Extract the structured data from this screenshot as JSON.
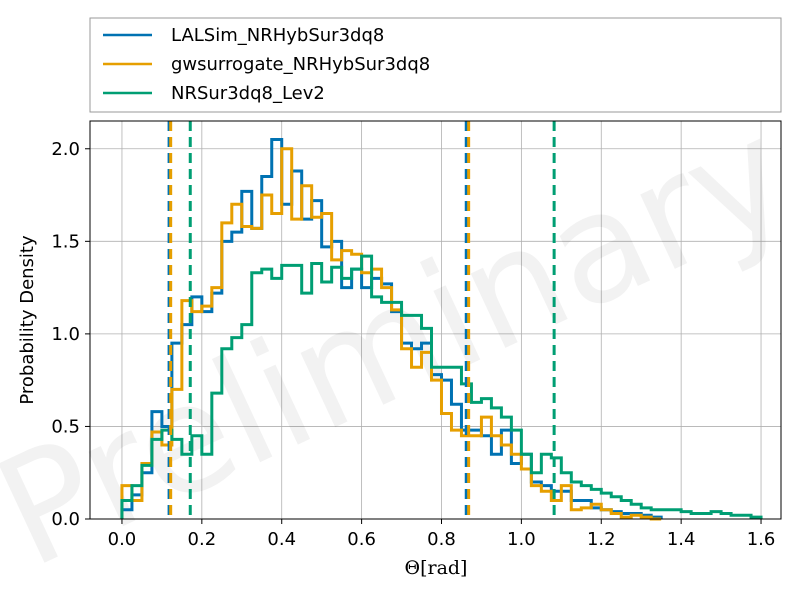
{
  "chart_data": {
    "type": "histogram-step",
    "xlabel": "Θ[rad]",
    "ylabel": "Probability Density",
    "xlim": [
      -0.08,
      1.65
    ],
    "ylim": [
      0.0,
      2.15
    ],
    "xticks": [
      0.0,
      0.2,
      0.4,
      0.6,
      0.8,
      1.0,
      1.2,
      1.4,
      1.6
    ],
    "xtick_labels": [
      "0.0",
      "0.2",
      "0.4",
      "0.6",
      "0.8",
      "1.0",
      "1.2",
      "1.4",
      "1.6"
    ],
    "yticks": [
      0.0,
      0.5,
      1.0,
      1.5,
      2.0
    ],
    "ytick_labels": [
      "0.0",
      "0.5",
      "1.0",
      "1.5",
      "2.0"
    ],
    "grid": true,
    "legend_position": "top",
    "watermark": "Preliminary",
    "series": [
      {
        "name": "LALSim_NRHybSur3dq8",
        "color": "#0072b2",
        "bin_start": 0.0,
        "bin_width": 0.025,
        "values": [
          0.05,
          0.13,
          0.25,
          0.58,
          0.5,
          0.95,
          1.05,
          1.2,
          1.12,
          1.22,
          1.5,
          1.55,
          1.77,
          1.57,
          1.85,
          2.05,
          1.7,
          1.88,
          1.62,
          1.72,
          1.47,
          1.5,
          1.25,
          1.35,
          1.25,
          1.3,
          1.27,
          1.12,
          0.95,
          0.92,
          0.95,
          0.78,
          0.75,
          0.62,
          0.48,
          0.48,
          0.45,
          0.35,
          0.48,
          0.3,
          0.35,
          0.2,
          0.18,
          0.15,
          0.15,
          0.1,
          0.1,
          0.06,
          0.05,
          0.04,
          0.03,
          0.03,
          0.02,
          0.01
        ],
        "vlines": [
          0.118,
          0.862
        ]
      },
      {
        "name": "gwsurrogate_NRHybSur3dq8",
        "color": "#e69f00",
        "bin_start": 0.0,
        "bin_width": 0.025,
        "values": [
          0.18,
          0.1,
          0.3,
          0.47,
          0.4,
          0.7,
          1.18,
          1.12,
          1.15,
          1.25,
          1.6,
          1.7,
          1.58,
          1.57,
          1.75,
          1.65,
          2.0,
          1.62,
          1.8,
          1.63,
          1.65,
          1.4,
          1.45,
          1.43,
          1.33,
          1.35,
          1.25,
          1.13,
          0.92,
          0.82,
          0.9,
          0.75,
          0.57,
          0.48,
          0.45,
          0.45,
          0.55,
          0.45,
          0.4,
          0.35,
          0.27,
          0.18,
          0.15,
          0.1,
          0.18,
          0.05,
          0.06,
          0.08,
          0.05,
          0.03,
          0.01,
          0.02,
          0.01,
          0.0
        ],
        "vlines": [
          0.122,
          0.868
        ]
      },
      {
        "name": "NRSur3dq8_Lev2",
        "color": "#009e73",
        "bin_start": 0.0,
        "bin_width": 0.025,
        "values": [
          0.1,
          0.18,
          0.29,
          0.43,
          0.48,
          0.43,
          0.35,
          0.45,
          0.35,
          0.68,
          0.92,
          0.98,
          1.05,
          1.33,
          1.35,
          1.3,
          1.37,
          1.37,
          1.22,
          1.38,
          1.28,
          1.36,
          1.3,
          1.35,
          1.42,
          1.2,
          1.17,
          1.17,
          1.1,
          1.1,
          1.03,
          0.82,
          0.82,
          0.82,
          0.73,
          0.63,
          0.65,
          0.6,
          0.55,
          0.48,
          0.35,
          0.25,
          0.35,
          0.33,
          0.25,
          0.2,
          0.18,
          0.16,
          0.14,
          0.12,
          0.1,
          0.08,
          0.06,
          0.05,
          0.05,
          0.05,
          0.04,
          0.03,
          0.03,
          0.04,
          0.03,
          0.02,
          0.02,
          0.01
        ],
        "vlines": [
          0.171,
          1.082
        ]
      }
    ]
  }
}
